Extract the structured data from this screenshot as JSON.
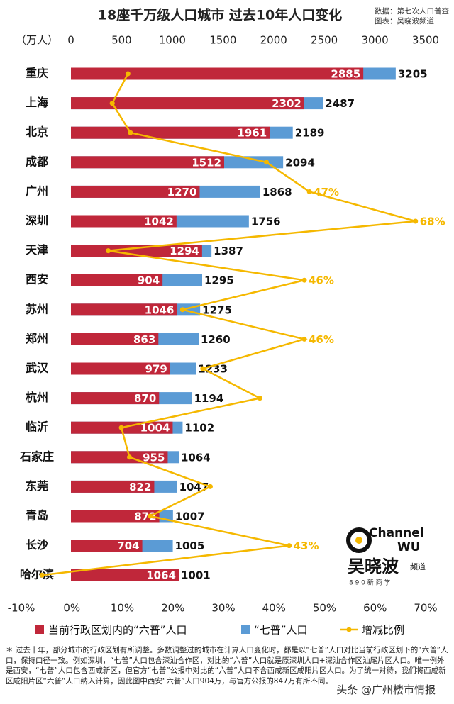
{
  "chart_data": {
    "type": "bar",
    "orientation": "horizontal",
    "title": "18座千万级人口城市  过去10年人口变化",
    "source": "数据：第七次人口普查",
    "credit": "图表：吴晓波频道",
    "xlabel": "（万人）",
    "categories": [
      "重庆",
      "上海",
      "北京",
      "成都",
      "广州",
      "深圳",
      "天津",
      "西安",
      "苏州",
      "郑州",
      "武汉",
      "杭州",
      "临沂",
      "石家庄",
      "东莞",
      "青岛",
      "长沙",
      "哈尔滨"
    ],
    "xlim": [
      0,
      3500
    ],
    "xticks": [
      0,
      500,
      1000,
      1500,
      2000,
      2500,
      3000,
      3500
    ],
    "x2lim": [
      -10,
      70
    ],
    "x2ticks": [
      {
        "value": -10,
        "label": "-10%"
      },
      {
        "value": 0,
        "label": "0%"
      },
      {
        "value": 10,
        "label": "10%"
      },
      {
        "value": 20,
        "label": "20%"
      },
      {
        "value": 30,
        "label": "30%"
      },
      {
        "value": 40,
        "label": "40%"
      },
      {
        "value": 50,
        "label": "50%"
      },
      {
        "value": 60,
        "label": "60%"
      },
      {
        "value": 70,
        "label": "70%"
      }
    ],
    "series": [
      {
        "name": "当前行政区划内的“六普”人口",
        "type": "bar",
        "color": "#c0273a",
        "values": [
          2885,
          2302,
          1961,
          1512,
          1270,
          1042,
          1294,
          904,
          1046,
          863,
          979,
          870,
          1004,
          955,
          822,
          872,
          704,
          1064
        ]
      },
      {
        "name": "“七普”人口",
        "type": "bar",
        "color": "#5b9bd5",
        "values": [
          3205,
          2487,
          2189,
          2094,
          1868,
          1756,
          1387,
          1295,
          1275,
          1260,
          1233,
          1194,
          1102,
          1064,
          1047,
          1007,
          1005,
          1001
        ]
      },
      {
        "name": "增减比例",
        "type": "line",
        "axis": "x2",
        "color": "#f5b800",
        "values": [
          11.1,
          8.0,
          11.6,
          38.5,
          47,
          68,
          7.2,
          46,
          21.9,
          46,
          25.9,
          37.2,
          9.8,
          11.4,
          27.4,
          15.5,
          43,
          -5.9
        ],
        "value_labels": [
          null,
          null,
          null,
          null,
          "47%",
          "68%",
          null,
          "46%",
          null,
          "46%",
          null,
          null,
          null,
          null,
          null,
          null,
          "43%",
          null
        ]
      }
    ],
    "footnote": "＊ 过去十年，部分城市的行政区划有所调整。多数调整过的城市在计算人口变化时，都是以“七普”人口对比当前行政区划下的“六普”人口，保持口径一致。例如深圳，“七普”人口包含深汕合作区，对比的“六普”人口就是原深圳人口+深汕合作区汕尾片区人口。唯一例外是西安，“七普”人口包含西咸新区，但官方“七普”公报中对比的“六普”人口不含西咸新区咸阳片区人口。为了统一对待，我们将西咸新区咸阳片区“六普”人口纳入计算，因此图中西安“六普”人口904万，与官方公报的847万有所不同。",
    "logo": {
      "name": "Channel",
      "mark": "WU",
      "brand": "吴晓波",
      "sub": "频道",
      "tagline": "8 9 0  新 商 学"
    },
    "watermark": "头条 @广州楼市情报"
  }
}
